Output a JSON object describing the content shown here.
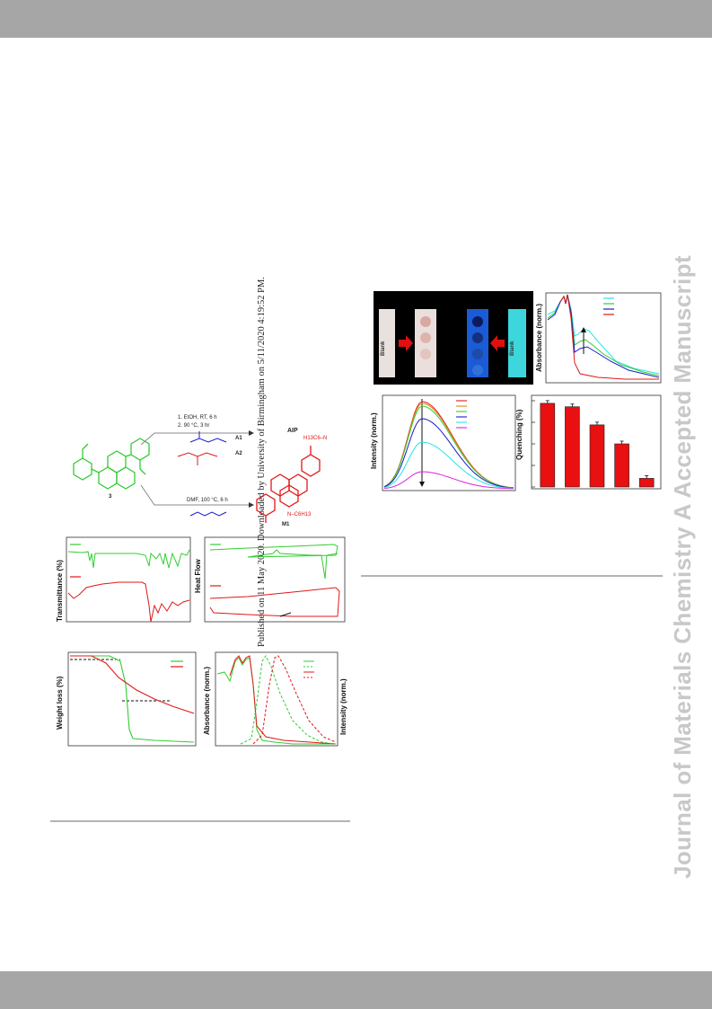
{
  "side_note": "Published on 11 May 2020. Downloaded by University of Birmingham on 5/11/2020 4:19:52 PM.",
  "watermark": "Journal of Materials Chemistry A Accepted Manuscript",
  "scheme": {
    "step1": "1. EtOH, RT, 6 h",
    "step2": "2. 90 °C, 3 hr",
    "product_aip": "AIP",
    "amine_a1": "A1",
    "amine_a2": "A2",
    "compound3": "3",
    "step3": "DMF, 100 °C, 6 h",
    "product_m1": "M1",
    "imine_top": "H13C6–N",
    "imine_bottom": "N–C6H13"
  },
  "photo": {
    "blank_left": "Blank",
    "blank_right": "Blank"
  },
  "axis_labels": {
    "transmittance": "Transmittance (%)",
    "heat_flow": "Heat Flow",
    "weight_loss": "Weight loss (%)",
    "absorbance_norm": "Absorbance (norm.)",
    "intensity_norm": "Intensity (norm.)",
    "quenching": "Quenching (%)"
  },
  "colors": {
    "green": "#33cc33",
    "red": "#e01818",
    "blue": "#1a1acc",
    "cyan": "#22e6e6",
    "magenta": "#dd22dd",
    "orange": "#e08a10",
    "bar_red": "#e81010"
  },
  "chart_data": [
    {
      "type": "line",
      "panel": "ftir",
      "ylabel": "Transmittance (%)",
      "series_colors": [
        "green",
        "red"
      ]
    },
    {
      "type": "line",
      "panel": "dsc",
      "ylabel": "Heat Flow",
      "series_colors": [
        "green",
        "red"
      ]
    },
    {
      "type": "line",
      "panel": "tga",
      "ylabel": "Weight loss (%)",
      "series_colors": [
        "green",
        "red"
      ]
    },
    {
      "type": "line",
      "panel": "abs_pl",
      "ylabel": "Absorbance (norm.)",
      "y2label": "Intensity (norm.)",
      "series_colors": [
        "green",
        "green",
        "red",
        "red"
      ]
    },
    {
      "type": "line",
      "panel": "abs_titration",
      "ylabel": "Absorbance (norm.)",
      "series_colors": [
        "cyan",
        "green",
        "blue",
        "red"
      ]
    },
    {
      "type": "line",
      "panel": "pl_quenching",
      "ylabel": "Intensity (norm.)",
      "series_colors": [
        "red",
        "orange",
        "green",
        "blue",
        "cyan",
        "magenta"
      ],
      "peak_heights": [
        0.97,
        0.95,
        0.92,
        0.78,
        0.52,
        0.19
      ]
    },
    {
      "type": "bar",
      "panel": "quenching_bars",
      "ylabel": "Quenching (%)",
      "values": [
        97,
        93,
        72,
        50,
        10
      ],
      "ylim": [
        0,
        100
      ]
    }
  ]
}
